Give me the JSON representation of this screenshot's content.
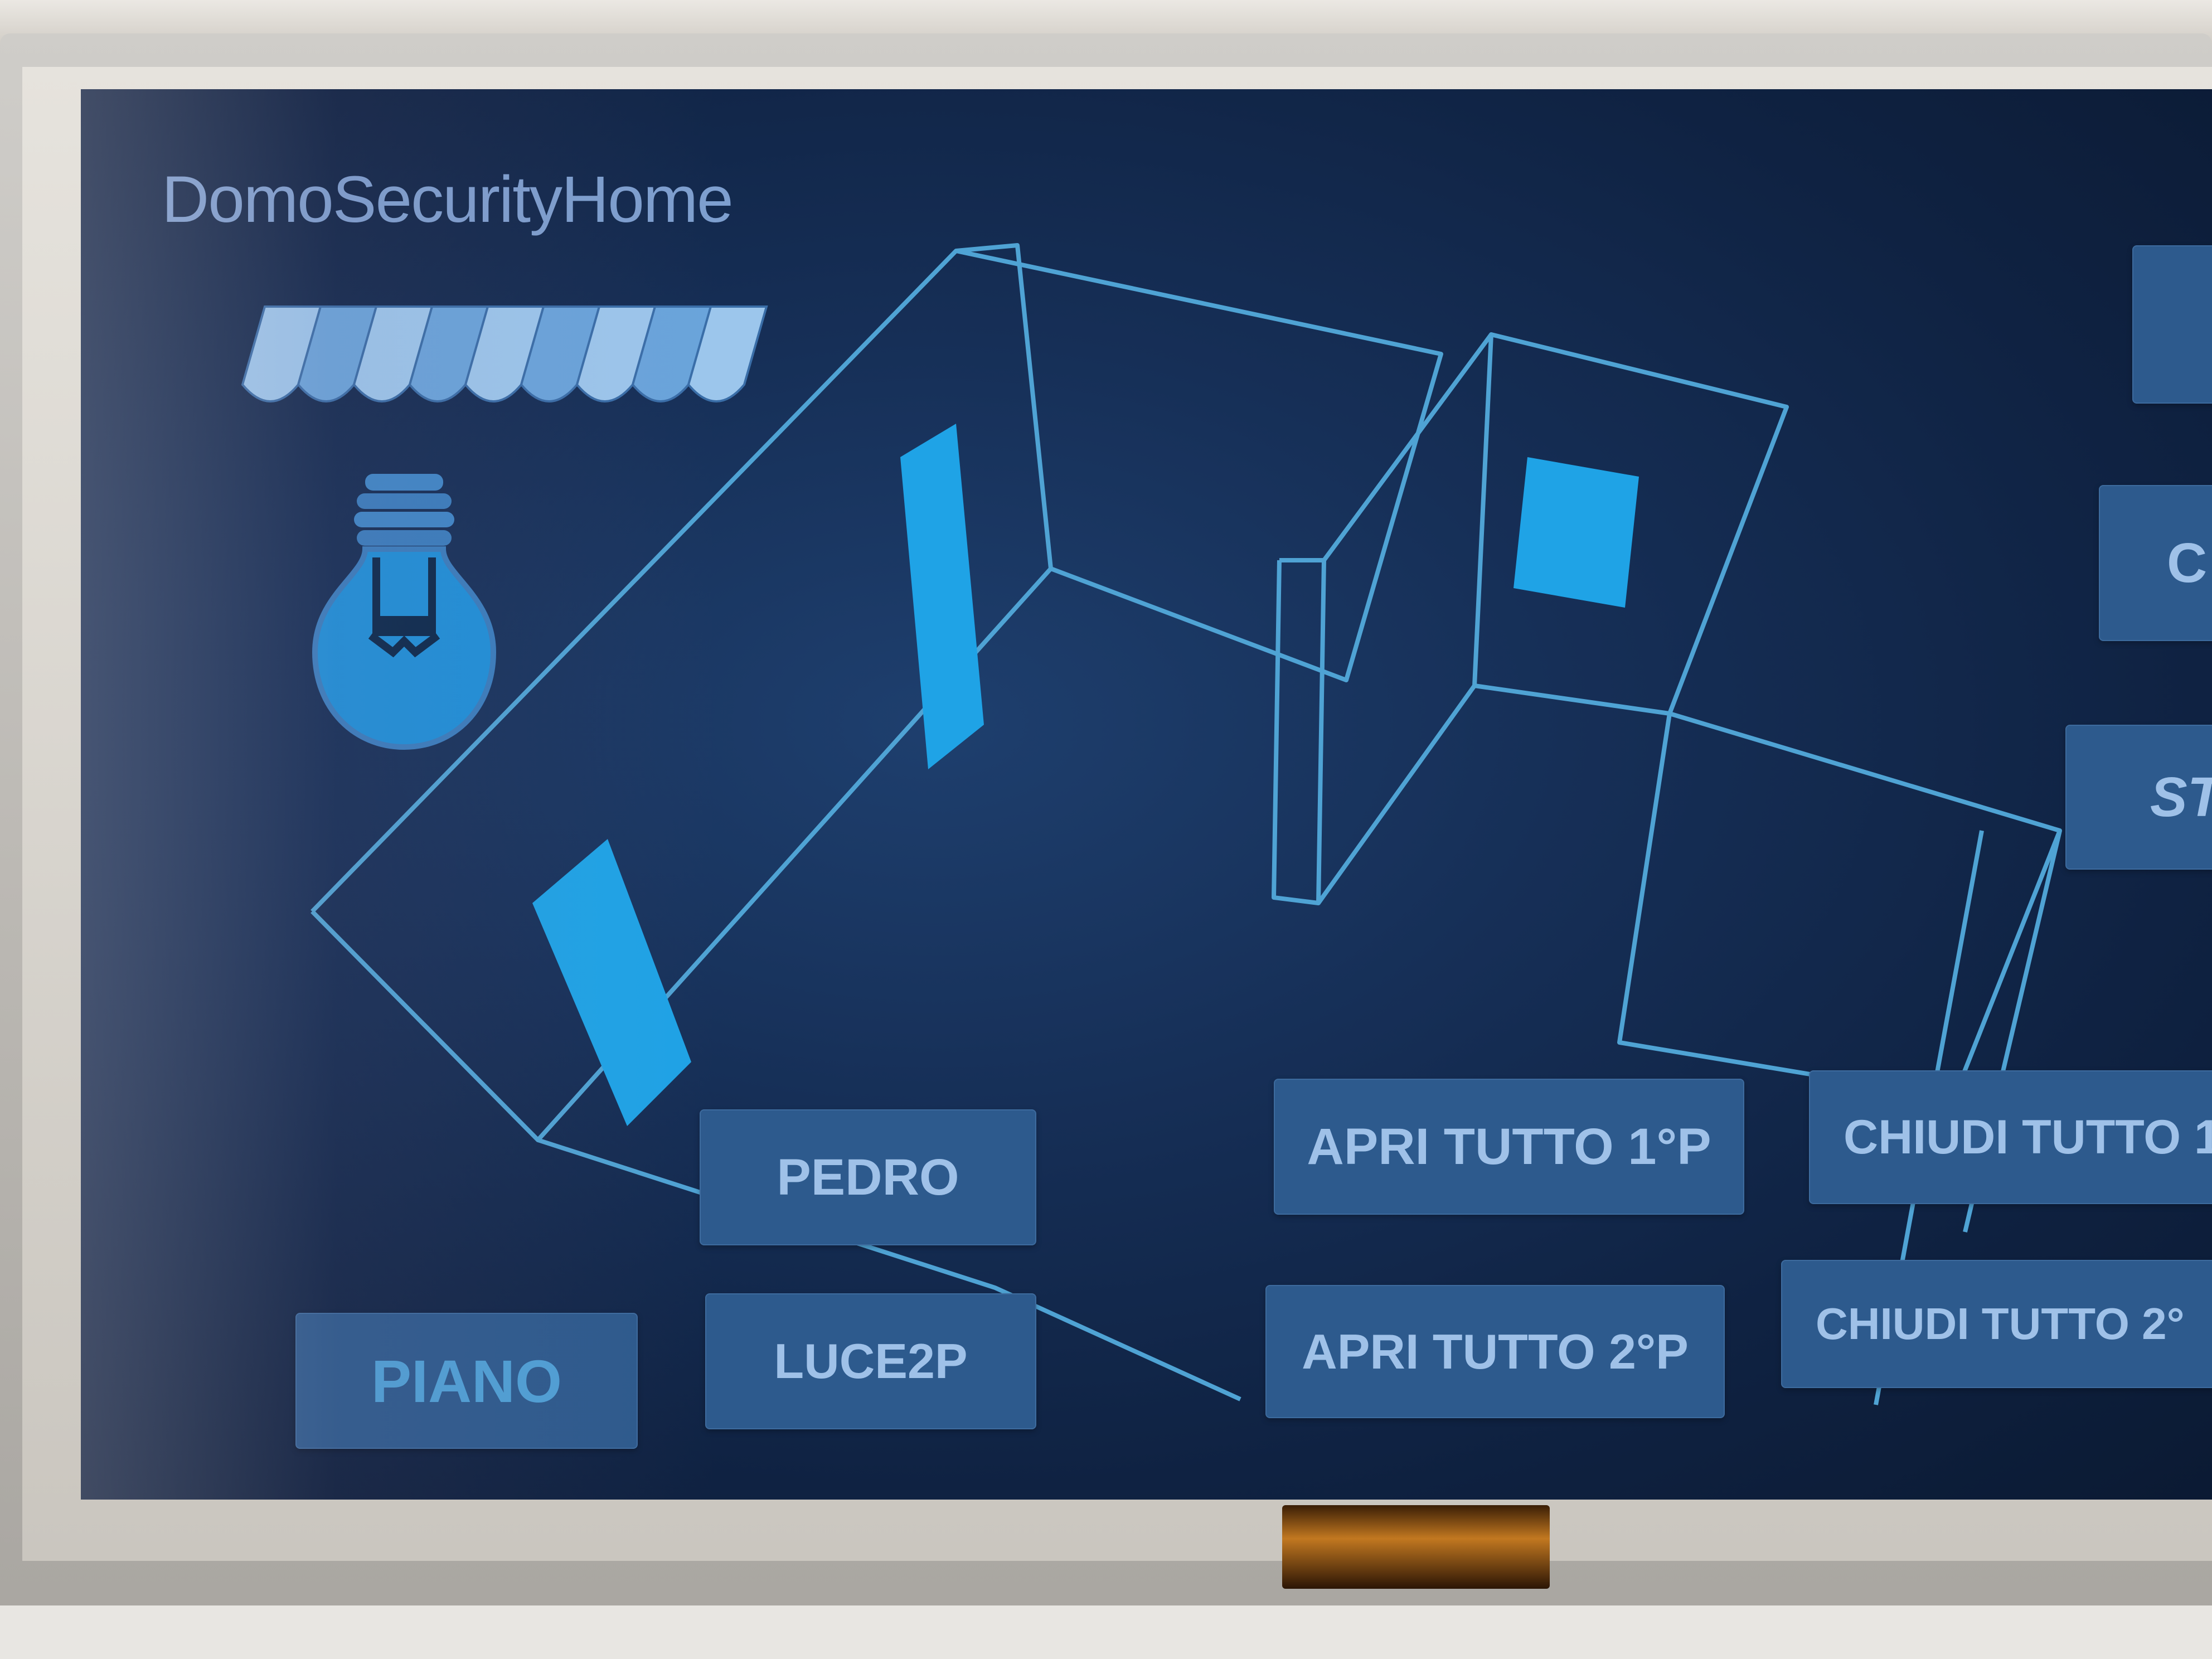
{
  "app": {
    "title": "DomoSecurityHome"
  },
  "icons": {
    "awning": "awning-icon",
    "bulb": "light-bulb-icon"
  },
  "buttons": {
    "pedro": "PEDRO",
    "luce2p": "LUCE2P",
    "piano": "PIANO",
    "apri1": "APRI TUTTO 1°P",
    "apri2": "APRI TUTTO 2°P",
    "chiudi1": "CHIUDI TUTTO 1",
    "chiudi2": "CHIUDI TUTTO 2°",
    "side_c": "C",
    "side_st": "ST"
  },
  "colors": {
    "screen_bg": "#162f57",
    "wall_outline": "#4fa3d4",
    "open_element": "#1fa3e6",
    "button_bg": "#2d5a8d",
    "button_text": "#9fc1e8",
    "title_text": "#7e9fcf"
  }
}
